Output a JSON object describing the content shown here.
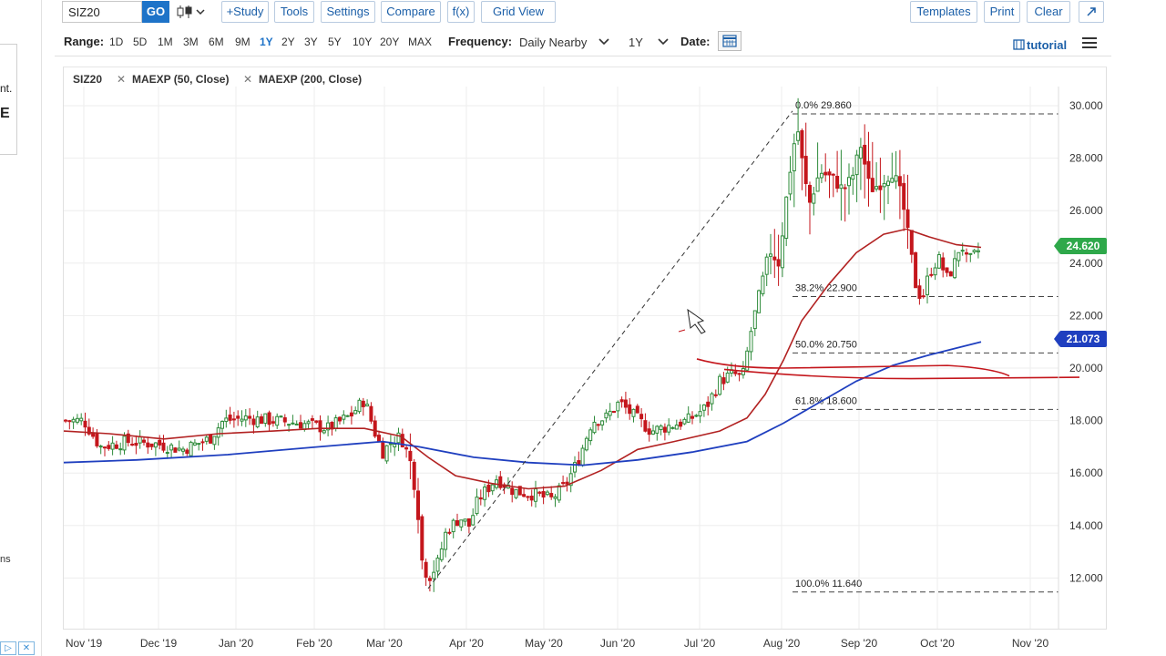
{
  "left_panel": {
    "text1": "nt.",
    "text2": "E",
    "text3": "ns",
    "ad_icon1": "▷",
    "ad_icon2": "✕"
  },
  "toolbar": {
    "symbol_value": "SIZ20",
    "go_label": "GO",
    "study_label": "+Study",
    "tools_label": "Tools",
    "settings_label": "Settings",
    "compare_label": "Compare",
    "fx_label": "f(x)",
    "gridview_label": "Grid View",
    "templates_label": "Templates",
    "print_label": "Print",
    "clear_label": "Clear",
    "expand_icon": "expand-icon"
  },
  "rangebar": {
    "range_label": "Range:",
    "ranges": [
      "1D",
      "5D",
      "1M",
      "3M",
      "6M",
      "9M",
      "1Y",
      "2Y",
      "3Y",
      "5Y",
      "10Y",
      "20Y",
      "MAX"
    ],
    "active_range": "1Y",
    "frequency_label": "Frequency:",
    "frequency_value": "Daily Nearby",
    "period_value": "1Y",
    "date_label": "Date:",
    "tutorial_label": "tutorial"
  },
  "legend": {
    "symbol": "SIZ20",
    "study1": "MAEXP (50, Close)",
    "study2": "MAEXP (200, Close)"
  },
  "chart_data": {
    "type": "candlestick",
    "symbol": "SIZ20",
    "x_tick_labels": [
      "Nov '19",
      "Dec '19",
      "Jan '20",
      "Feb '20",
      "Mar '20",
      "Apr '20",
      "May '20",
      "Jun '20",
      "Jul '20",
      "Aug '20",
      "Sep '20",
      "Oct '20",
      "Nov '20"
    ],
    "y_tick_labels": [
      "30.000",
      "28.000",
      "26.000",
      "24.000",
      "22.000",
      "20.000",
      "18.000",
      "16.000",
      "14.000",
      "12.000"
    ],
    "ylim": [
      11.0,
      30.5
    ],
    "last_price_label": "24.620",
    "ma200_label": "21.073",
    "fib_levels": [
      {
        "label": "0.0% 29.860",
        "value": 29.86
      },
      {
        "label": "38.2% 22.900",
        "value": 22.9
      },
      {
        "label": "50.0% 20.750",
        "value": 20.75
      },
      {
        "label": "61.8% 18.600",
        "value": 18.6
      },
      {
        "label": "100.0% 11.640",
        "value": 11.64
      }
    ],
    "colors": {
      "up": "#2e8b3a",
      "down": "#c4161c",
      "ma50": "#b22222",
      "ma200": "#1f3fbf",
      "last_price": "#2ea84a",
      "ma_badge": "#1f3fbf"
    }
  }
}
